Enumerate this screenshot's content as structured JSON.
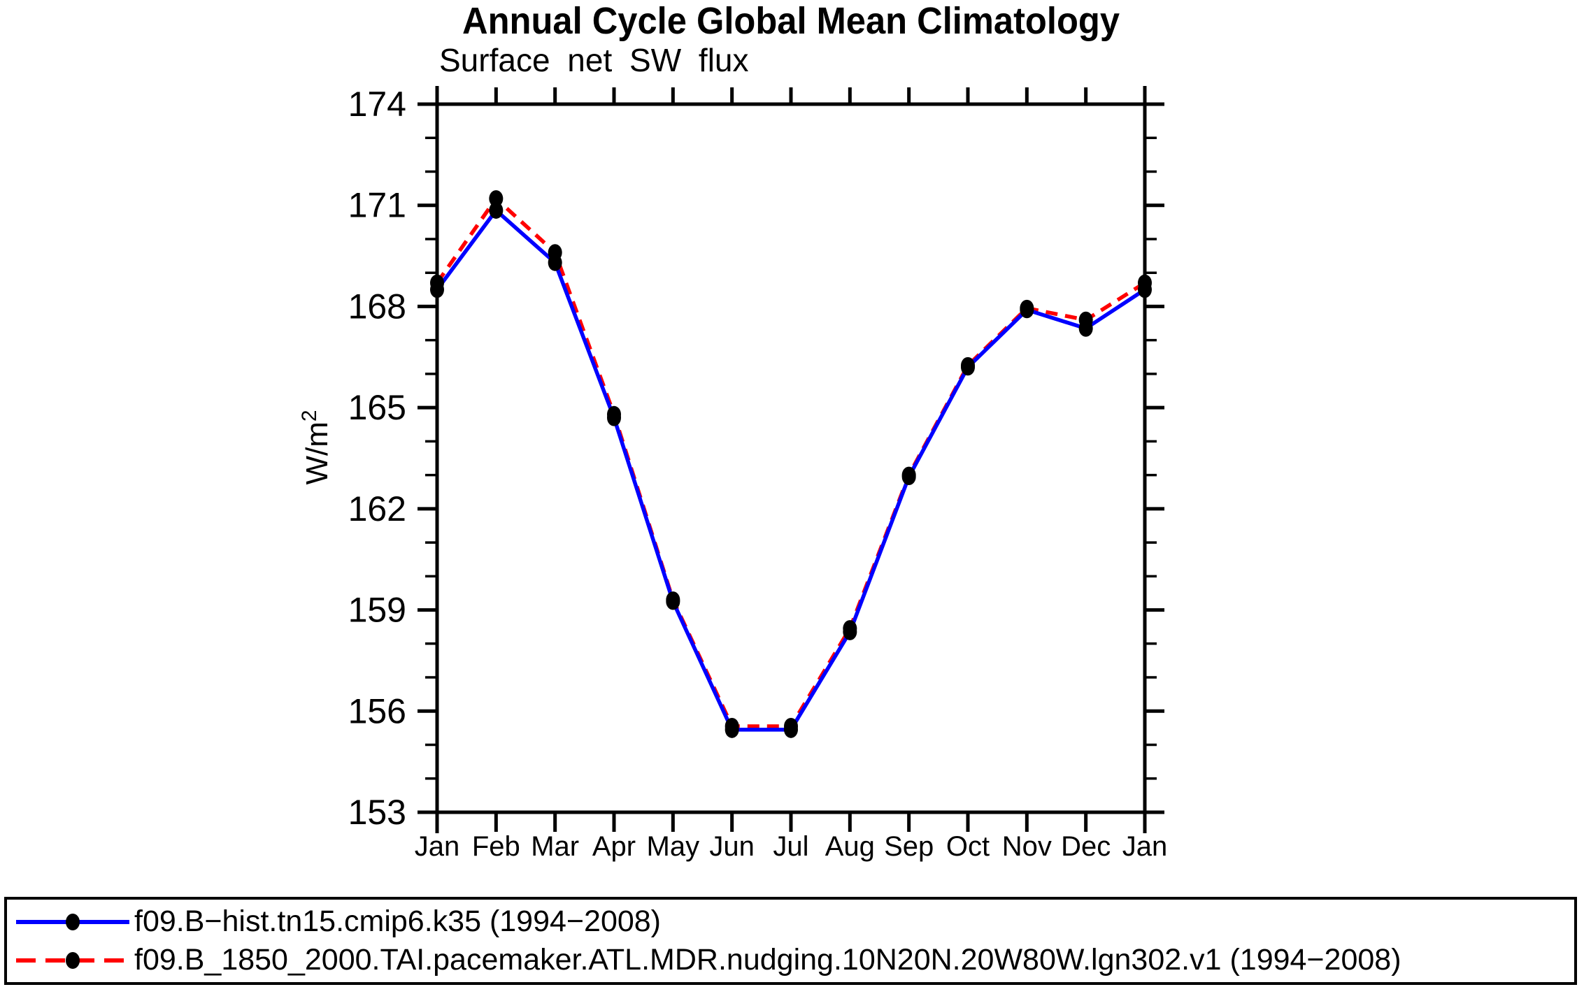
{
  "header": {
    "title": "Annual Cycle Global Mean Climatology"
  },
  "chart_data": {
    "type": "line",
    "title": "Annual Cycle Global Mean Climatology",
    "subtitle": "Surface net SW flux",
    "ylabel": "W/m²",
    "xlabel": "",
    "categories": [
      "Jan",
      "Feb",
      "Mar",
      "Apr",
      "May",
      "Jun",
      "Jul",
      "Aug",
      "Sep",
      "Oct",
      "Nov",
      "Dec",
      "Jan"
    ],
    "ylim": [
      153,
      174
    ],
    "ytick_major": [
      153,
      156,
      159,
      162,
      165,
      168,
      171,
      174
    ],
    "ytick_minor_step": 1,
    "grid": false,
    "legend_position": "bottom",
    "frame_color": "#000000",
    "series": [
      {
        "name": "f09.B−hist.tn15.cmip6.k35 (1994−2008)",
        "color": "#0000ff",
        "style": "solid",
        "marker": "circle",
        "marker_color": "#000000",
        "values": [
          168.5,
          170.85,
          169.3,
          164.7,
          159.25,
          155.45,
          155.45,
          158.35,
          162.95,
          166.2,
          167.9,
          167.35,
          168.5
        ]
      },
      {
        "name": "f09.B_1850_2000.TAI.pacemaker.ATL.MDR.nudging.10N20N.20W80W.lgn302.v1 (1994−2008)",
        "color": "#ff0000",
        "style": "dashed",
        "marker": "circle",
        "marker_color": "#000000",
        "values": [
          168.7,
          171.2,
          169.6,
          164.8,
          159.3,
          155.55,
          155.55,
          158.45,
          163.0,
          166.25,
          167.95,
          167.6,
          168.7
        ]
      }
    ]
  }
}
